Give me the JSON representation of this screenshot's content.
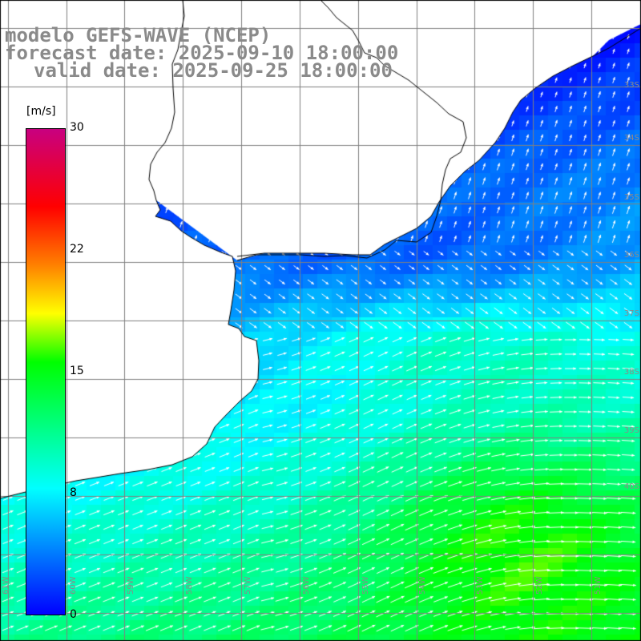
{
  "title": {
    "model": "modelo GEFS-WAVE (NCEP)",
    "forecast": "forecast date: 2025-09-10 18:00:00",
    "valid": "valid date: 2025-09-25 18:00:00"
  },
  "colorbar": {
    "unit": "[m/s]",
    "min": 0,
    "max": 30,
    "ticks": [
      "30",
      "22",
      "15",
      "8",
      "0"
    ],
    "colors": [
      "#0000ff",
      "#00ffff",
      "#00ff00",
      "#ffff00",
      "#ff8000",
      "#ff0000",
      "#c80080"
    ]
  },
  "map": {
    "variable": "wind speed",
    "land_color": "#ffffff",
    "grid_color": "#808080",
    "coast_color": "#000000",
    "lat_labels": [
      "33S",
      "34S",
      "35S",
      "36S",
      "37S",
      "38S",
      "39S",
      "40S"
    ],
    "lon_labels": [
      "61W",
      "60W",
      "59W",
      "58W",
      "57W",
      "56W",
      "55W",
      "54W",
      "53W",
      "52W",
      "51W"
    ]
  }
}
